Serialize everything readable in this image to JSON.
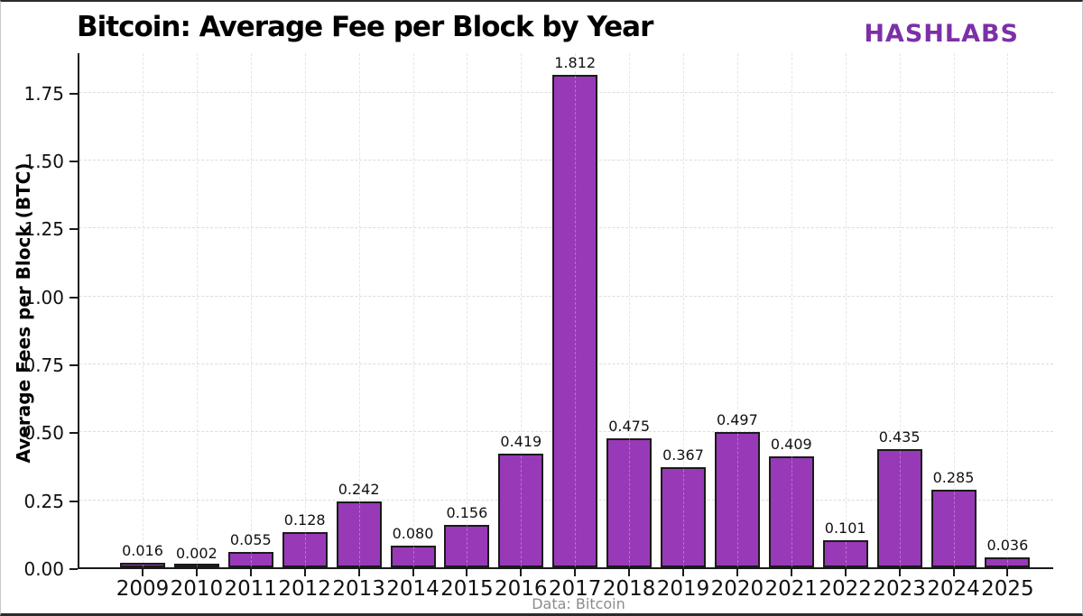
{
  "header": {
    "title": "Bitcoin: Average Fee per Block by Year",
    "brand": "HASHLABS"
  },
  "footer": {
    "source": "Data: Bitcoin"
  },
  "colors": {
    "bar_fill": "#9839B8",
    "bar_edge": "#1a1a1a",
    "brand": "#7D2FA8",
    "grid": "#dcdcdc",
    "text": "#111111",
    "source_text": "#8c8c8c"
  },
  "chart_data": {
    "type": "bar",
    "title": "Bitcoin: Average Fee per Block by Year",
    "xlabel": "",
    "ylabel": "Average Fees per Block (BTC)",
    "categories": [
      "2009",
      "2010",
      "2011",
      "2012",
      "2013",
      "2014",
      "2015",
      "2016",
      "2017",
      "2018",
      "2019",
      "2020",
      "2021",
      "2022",
      "2023",
      "2024",
      "2025"
    ],
    "values": [
      0.016,
      0.002,
      0.055,
      0.128,
      0.242,
      0.08,
      0.156,
      0.419,
      1.812,
      0.475,
      0.367,
      0.497,
      0.409,
      0.101,
      0.435,
      0.285,
      0.036
    ],
    "bar_labels": [
      "0.016",
      "0.002",
      "0.055",
      "0.128",
      "0.242",
      "0.080",
      "0.156",
      "0.419",
      "1.812",
      "0.475",
      "0.367",
      "0.497",
      "0.409",
      "0.101",
      "0.435",
      "0.285",
      "0.036"
    ],
    "yticks": [
      0,
      0.25,
      0.5,
      0.75,
      1.0,
      1.25,
      1.5,
      1.75
    ],
    "ytick_labels": [
      "0.00",
      "0.25",
      "0.50",
      "0.75",
      "1.00",
      "1.25",
      "1.50",
      "1.75"
    ],
    "ylim": [
      0,
      1.89
    ],
    "grid": true,
    "legend_position": "none"
  }
}
